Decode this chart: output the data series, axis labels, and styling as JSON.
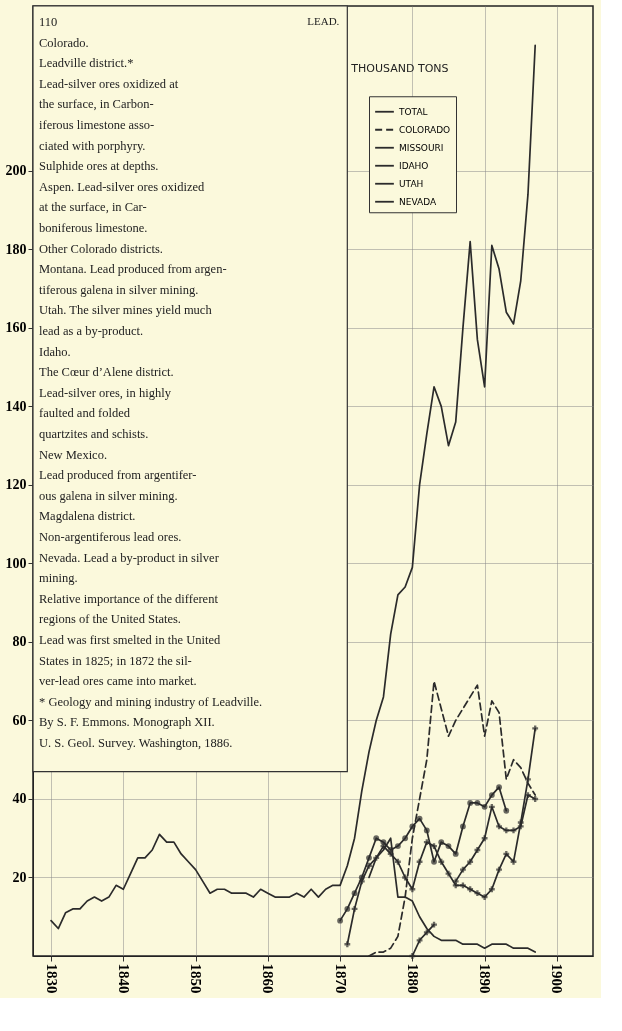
{
  "chart_data": {
    "type": "line",
    "title": "LEAD.",
    "ylabel": "THOUSAND TONS",
    "xlim": [
      1827.5,
      1905
    ],
    "xticks": [
      1830,
      1840,
      1850,
      1860,
      1870,
      1880,
      1890,
      1900
    ],
    "ylim": [
      0,
      242
    ],
    "yticks": [
      20,
      40,
      60,
      80,
      100,
      120,
      140,
      160,
      180,
      200
    ],
    "grid": true,
    "legend": "top right",
    "annotations": [
      "110",
      "Colorado.",
      "Leadville district.*",
      "Lead-silver ores oxidized at",
      "the surface, in Carbon-",
      "iferous limestone asso-",
      "ciated with porphyry.",
      "Sulphide ores at depths.",
      "Aspen.  Lead-silver ores oxidized",
      "at the surface, in Car-",
      "boniferous limestone.",
      "Other Colorado districts.",
      "Montana.  Lead produced from argen-",
      "tiferous galena in silver mining.",
      "Utah.  The silver mines yield much",
      "lead as a by-product.",
      "Idaho.",
      "The Cœur d’Alene district.",
      "Lead-silver ores, in highly",
      "faulted and folded",
      "quartzites and schists.",
      "New Mexico.",
      "Lead produced from argentifer-",
      "ous galena in silver mining.",
      "Magdalena district.",
      "Non-argentiferous lead ores.",
      "Nevada.  Lead a by-product in silver",
      "mining.",
      "Relative importance of the different",
      "regions of the United States.",
      "Lead was first smelted in the United",
      "States in 1825; in 1872 the sil-",
      "ver-lead ores came into market.",
      "* Geology and mining industry of Leadville.",
      "By S. F. Emmons.  Monograph XII.",
      "U. S. Geol. Survey.  Washington, 1886."
    ],
    "series": [
      {
        "name": "TOTAL",
        "color": "#2b2b2b",
        "line_style": "solid",
        "x": [
          1830,
          1831,
          1832,
          1833,
          1834,
          1835,
          1836,
          1837,
          1838,
          1839,
          1840,
          1841,
          1842,
          1843,
          1844,
          1845,
          1846,
          1847,
          1848,
          1849,
          1850,
          1851,
          1852,
          1853,
          1854,
          1855,
          1856,
          1857,
          1858,
          1859,
          1860,
          1861,
          1862,
          1863,
          1864,
          1865,
          1866,
          1867,
          1868,
          1869,
          1870,
          1871,
          1872,
          1873,
          1874,
          1875,
          1876,
          1877,
          1878,
          1879,
          1880,
          1881,
          1882,
          1883,
          1884,
          1885,
          1886,
          1887,
          1888,
          1889,
          1890,
          1891,
          1892,
          1893,
          1894,
          1895,
          1896,
          1897
        ],
        "values": [
          9,
          7,
          11,
          12,
          12,
          14,
          15,
          14,
          15,
          18,
          17,
          21,
          25,
          25,
          27,
          31,
          29,
          29,
          26,
          24,
          22,
          19,
          16,
          17,
          17,
          16,
          16,
          16,
          15,
          17,
          16,
          15,
          15,
          15,
          16,
          15,
          17,
          15,
          17,
          18,
          18,
          23,
          30,
          42,
          52,
          60,
          66,
          82,
          92,
          94,
          99,
          120,
          133,
          145,
          140,
          130,
          136,
          160,
          182,
          157,
          145,
          181,
          175,
          164,
          161,
          172,
          194,
          232
        ]
      },
      {
        "name": "COLORADO",
        "color": "#2b2b2b",
        "line_style": "dashed",
        "x": [
          1874,
          1875,
          1876,
          1877,
          1878,
          1879,
          1880,
          1881,
          1882,
          1883,
          1884,
          1885,
          1886,
          1887,
          1888,
          1889,
          1890,
          1891,
          1892,
          1893,
          1894,
          1895,
          1896,
          1897
        ],
        "values": [
          0,
          1,
          1,
          2,
          5,
          15,
          30,
          40,
          50,
          70,
          63,
          56,
          60,
          63,
          66,
          69,
          56,
          65,
          62,
          45,
          50,
          48,
          44,
          41
        ]
      },
      {
        "name": "MISSOURI",
        "color": "#2b2b2b",
        "line_style": "solid",
        "marker": "circle",
        "x": [
          1870,
          1871,
          1872,
          1873,
          1874,
          1875,
          1876,
          1877,
          1878,
          1879,
          1880,
          1881,
          1882,
          1883,
          1884,
          1885,
          1886,
          1887,
          1888,
          1889,
          1890,
          1891,
          1892,
          1893
        ],
        "values": [
          9,
          12,
          16,
          20,
          25,
          30,
          29,
          27,
          28,
          30,
          33,
          35,
          32,
          24,
          29,
          28,
          26,
          33,
          39,
          39,
          38,
          41,
          43,
          37
        ]
      },
      {
        "name": "IDAHO",
        "color": "#2b2b2b",
        "line_style": "solid",
        "marker": "cross",
        "x": [
          1880,
          1881,
          1882,
          1883,
          1884,
          1885,
          1886,
          1887,
          1888,
          1889,
          1890,
          1891,
          1892,
          1893,
          1894,
          1895,
          1896,
          1897
        ],
        "values": [
          0,
          4,
          6,
          8,
          null,
          null,
          19,
          22,
          24,
          27,
          30,
          38,
          33,
          32,
          32,
          33,
          41,
          40
        ]
      },
      {
        "name": "UTAH",
        "color": "#2b2b2b",
        "line_style": "solid",
        "marker": "cross",
        "x": [
          1871,
          1872,
          1873,
          1874,
          1875,
          1876,
          1877,
          1878,
          1879,
          1880,
          1881,
          1882,
          1883,
          1884,
          1885,
          1886,
          1887,
          1888,
          1889,
          1890,
          1891,
          1892,
          1893,
          1894,
          1895,
          1896,
          1897
        ],
        "values": [
          3,
          12,
          19,
          23,
          25,
          28,
          26,
          24,
          20,
          17,
          24,
          29,
          28,
          24,
          21,
          18,
          18,
          17,
          16,
          15,
          17,
          22,
          26,
          24,
          34,
          45,
          58
        ]
      },
      {
        "name": "NEVADA",
        "color": "#2b2b2b",
        "line_style": "solid",
        "x": [
          1874,
          1875,
          1876,
          1877,
          1878,
          1879,
          1880,
          1881,
          1882,
          1883,
          1884,
          1885,
          1886,
          1887,
          1888,
          1889,
          1890,
          1891,
          1892,
          1893,
          1894,
          1895,
          1896,
          1897
        ],
        "values": [
          20,
          25,
          27,
          30,
          15,
          15,
          14,
          10,
          7,
          5,
          4,
          4,
          4,
          3,
          3,
          3,
          2,
          3,
          3,
          3,
          2,
          2,
          2,
          1
        ]
      }
    ]
  }
}
